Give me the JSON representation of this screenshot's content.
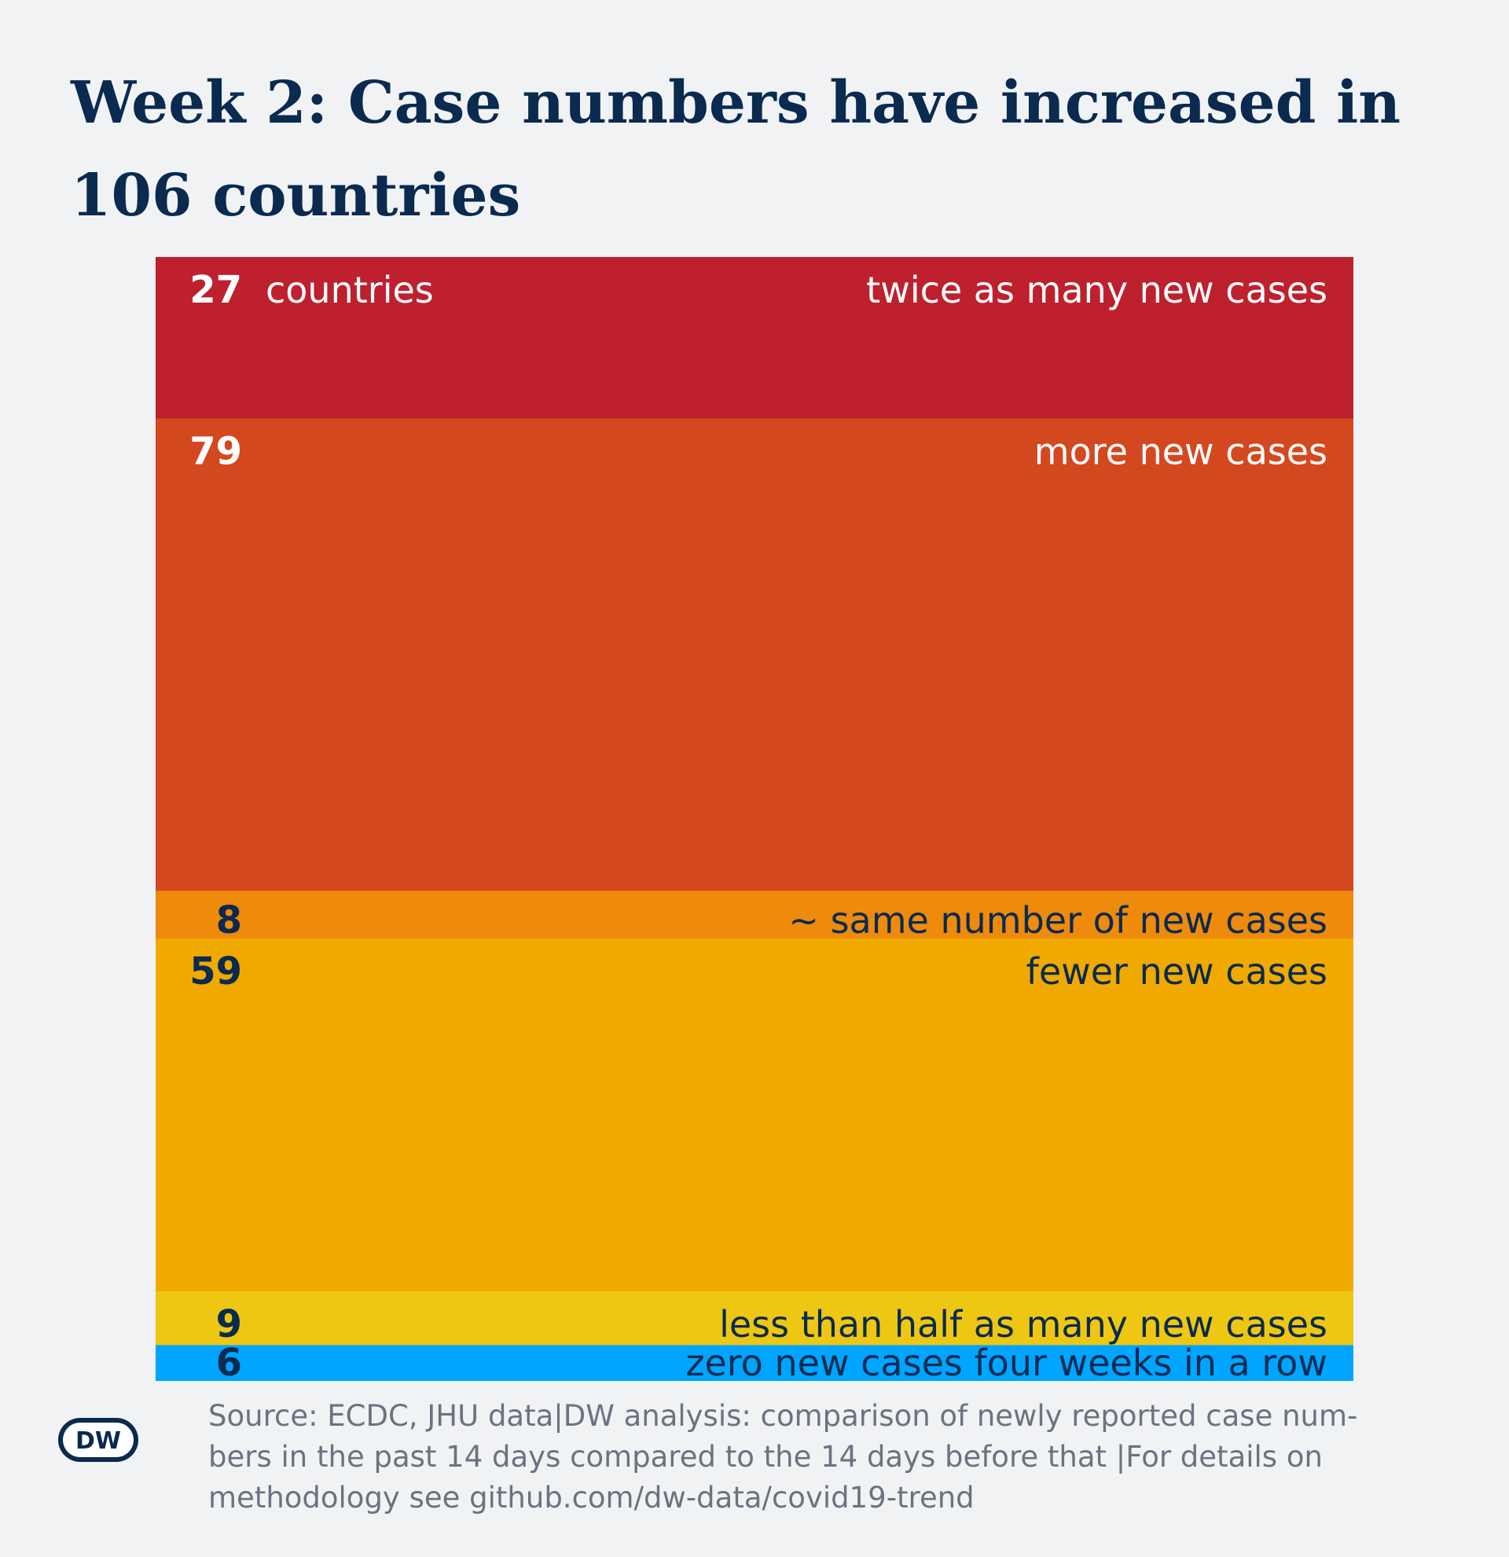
{
  "title": "Week 2: Case numbers have increased in 106 countries",
  "colors": {
    "background": "#f1f2f4",
    "title": "#0a2a4f",
    "note": "#6a7380",
    "dark_label": "#0a2a4f",
    "light_label": "#ffffff"
  },
  "chart_data": {
    "type": "bar",
    "layout": "stacked-vertical",
    "unit_label": "countries",
    "categories": [
      "twice as many new cases",
      "more new cases",
      "~ same number of new cases",
      "fewer new cases",
      "less than half as many new cases",
      "zero new cases four weeks in a row"
    ],
    "values": [
      27,
      79,
      8,
      59,
      9,
      6
    ],
    "colors": [
      "#be202e",
      "#d44820",
      "#ee8a0c",
      "#f0a900",
      "#eec712",
      "#00a5ff"
    ],
    "label_tone": [
      "light",
      "light",
      "dark",
      "dark",
      "dark",
      "dark"
    ]
  },
  "footer": {
    "logo_text": "DW",
    "note_lines": [
      "Source: ECDC, JHU data|DW analysis: comparison of newly reported case num-",
      "bers in the past 14 days compared to the 14 days before that |For details on",
      "methodology see github.com/dw-data/covid19-trend"
    ]
  }
}
